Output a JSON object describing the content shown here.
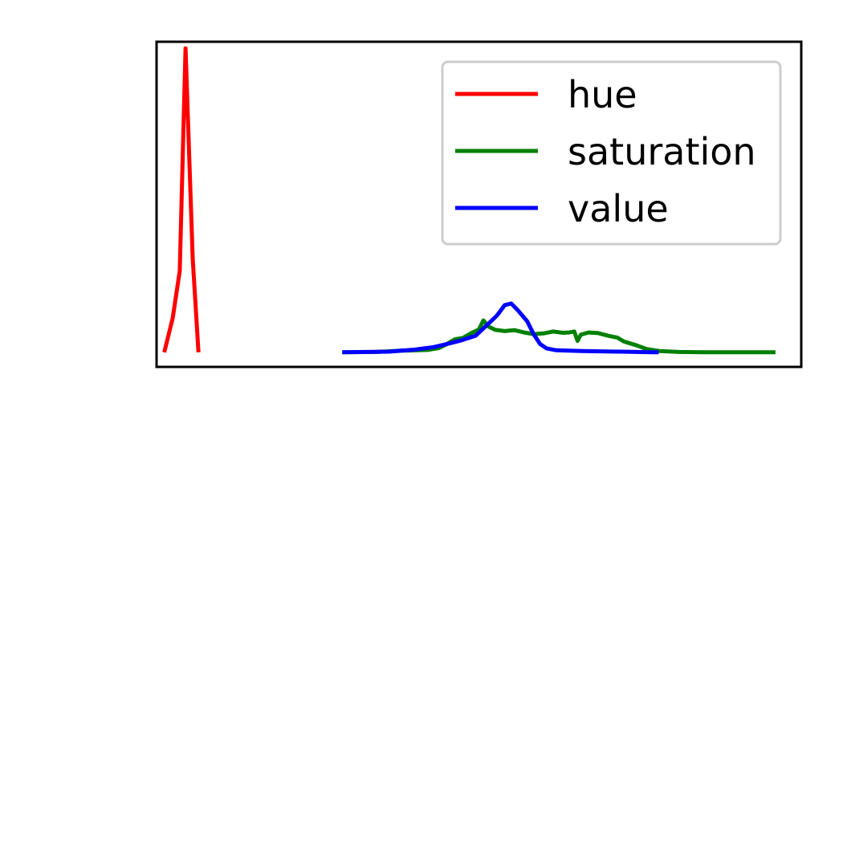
{
  "chart_data": {
    "type": "line",
    "title": "",
    "xlabel": "",
    "ylabel": "",
    "axis_ticks": false,
    "grid": false,
    "legend": {
      "placement": "top-right",
      "entries": [
        "hue",
        "saturation",
        "value"
      ]
    },
    "xlim": [
      0,
      100
    ],
    "ylim": [
      0,
      100
    ],
    "series": [
      {
        "name": "hue",
        "color": "#ff0000",
        "points": [
          [
            1.2,
            4.5
          ],
          [
            2.5,
            15.0
          ],
          [
            3.6,
            29.5
          ],
          [
            4.5,
            98.0
          ],
          [
            5.6,
            33.5
          ],
          [
            6.5,
            4.5
          ]
        ]
      },
      {
        "name": "saturation",
        "color": "#008000",
        "points": [
          [
            28.8,
            4.5
          ],
          [
            34.0,
            4.6
          ],
          [
            38.0,
            5.0
          ],
          [
            42.0,
            5.2
          ],
          [
            43.8,
            5.8
          ],
          [
            45.0,
            7.0
          ],
          [
            46.3,
            8.5
          ],
          [
            47.5,
            8.9
          ],
          [
            49.0,
            10.6
          ],
          [
            50.0,
            11.5
          ],
          [
            50.7,
            14.3
          ],
          [
            51.5,
            12.4
          ],
          [
            52.5,
            11.4
          ],
          [
            54.0,
            11.0
          ],
          [
            55.5,
            11.3
          ],
          [
            57.0,
            10.6
          ],
          [
            58.5,
            10.1
          ],
          [
            60.0,
            10.3
          ],
          [
            61.5,
            10.9
          ],
          [
            63.0,
            10.5
          ],
          [
            64.0,
            10.6
          ],
          [
            64.8,
            10.9
          ],
          [
            65.3,
            8.0
          ],
          [
            65.8,
            9.9
          ],
          [
            67.0,
            10.6
          ],
          [
            68.5,
            10.4
          ],
          [
            70.0,
            9.6
          ],
          [
            71.5,
            9.0
          ],
          [
            72.5,
            7.8
          ],
          [
            73.5,
            7.2
          ],
          [
            74.5,
            6.6
          ],
          [
            76.0,
            5.5
          ],
          [
            78.0,
            4.9
          ],
          [
            81.0,
            4.6
          ],
          [
            85.0,
            4.5
          ],
          [
            92.0,
            4.5
          ],
          [
            96.0,
            4.5
          ]
        ]
      },
      {
        "name": "value",
        "color": "#0000ff",
        "points": [
          [
            28.8,
            4.5
          ],
          [
            36.0,
            4.7
          ],
          [
            40.0,
            5.3
          ],
          [
            43.0,
            6.1
          ],
          [
            45.0,
            7.0
          ],
          [
            47.0,
            8.0
          ],
          [
            49.5,
            9.6
          ],
          [
            51.0,
            12.4
          ],
          [
            52.8,
            15.8
          ],
          [
            54.0,
            19.0
          ],
          [
            55.0,
            19.5
          ],
          [
            56.0,
            17.5
          ],
          [
            57.5,
            14.0
          ],
          [
            58.5,
            10.0
          ],
          [
            59.5,
            7.0
          ],
          [
            60.5,
            5.7
          ],
          [
            62.0,
            5.1
          ],
          [
            66.0,
            4.9
          ],
          [
            72.0,
            4.7
          ],
          [
            77.0,
            4.5
          ],
          [
            77.9,
            4.5
          ]
        ]
      }
    ]
  }
}
